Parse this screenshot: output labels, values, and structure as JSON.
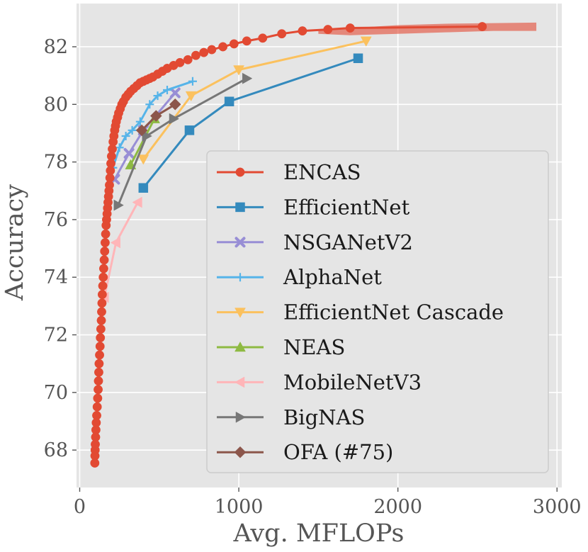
{
  "chart_data": {
    "type": "line",
    "title": "",
    "xlabel": "Avg. MFLOPs",
    "ylabel": "Accuracy",
    "xlim": [
      -20,
      3030
    ],
    "ylim": [
      66.7,
      83.5
    ],
    "xticks": [
      0,
      1000,
      2000,
      3000
    ],
    "yticks": [
      68,
      70,
      72,
      74,
      76,
      78,
      80,
      82
    ],
    "grid": true,
    "legend_position": "lower-right",
    "background_color": "#e5e5e5",
    "band": {
      "series": "ENCAS",
      "upper_x": [
        1500,
        1700,
        2000,
        2300,
        2600,
        2870
      ],
      "upper_y": [
        82.55,
        82.65,
        82.75,
        82.8,
        82.82,
        82.84
      ],
      "lower_x": [
        1500,
        1700,
        2000,
        2300,
        2600,
        2870
      ],
      "lower_y": [
        82.45,
        82.4,
        82.45,
        82.5,
        82.55,
        82.55
      ]
    },
    "series": [
      {
        "name": "ENCAS",
        "color": "#e24a33",
        "marker": "circle",
        "marker_step": 1,
        "x": [
          95,
          96,
          97,
          98,
          100,
          102,
          104,
          107,
          110,
          113,
          116,
          118,
          120,
          122,
          125,
          128,
          130,
          133,
          136,
          138,
          140,
          142,
          145,
          148,
          151,
          154,
          157,
          160,
          163,
          166,
          169,
          172,
          175,
          178,
          181,
          184,
          187,
          190,
          193,
          196,
          200,
          205,
          210,
          215,
          220,
          225,
          230,
          238,
          245,
          255,
          265,
          275,
          290,
          305,
          320,
          340,
          360,
          380,
          400,
          420,
          440,
          460,
          490,
          520,
          550,
          590,
          630,
          680,
          730,
          780,
          830,
          900,
          970,
          1050,
          1150,
          1270,
          1400,
          1560,
          1700,
          2530
        ],
        "y": [
          67.55,
          67.8,
          68.0,
          68.2,
          68.45,
          68.7,
          68.95,
          69.2,
          69.5,
          69.8,
          70.1,
          70.4,
          70.7,
          71.0,
          71.3,
          71.6,
          71.9,
          72.2,
          72.5,
          72.8,
          73.1,
          73.4,
          73.7,
          74.0,
          74.3,
          74.6,
          74.9,
          75.2,
          75.5,
          75.8,
          76.0,
          76.2,
          76.4,
          76.6,
          76.8,
          77.0,
          77.2,
          77.45,
          77.7,
          77.95,
          78.2,
          78.45,
          78.7,
          78.9,
          79.1,
          79.25,
          79.4,
          79.55,
          79.7,
          79.85,
          80.0,
          80.1,
          80.25,
          80.35,
          80.45,
          80.55,
          80.65,
          80.75,
          80.8,
          80.85,
          80.9,
          80.95,
          81.05,
          81.15,
          81.25,
          81.35,
          81.45,
          81.55,
          81.7,
          81.8,
          81.9,
          82.0,
          82.1,
          82.2,
          82.3,
          82.45,
          82.55,
          82.6,
          82.65,
          82.7
        ]
      },
      {
        "name": "EfficientNet",
        "color": "#348abd",
        "marker": "square",
        "marker_step": 1,
        "x": [
          400,
          690,
          940,
          1750
        ],
        "y": [
          77.1,
          79.1,
          80.1,
          81.6
        ]
      },
      {
        "name": "NSGANetV2",
        "color": "#988ed5",
        "marker": "x",
        "marker_step": 1,
        "x": [
          220,
          310,
          400,
          600
        ],
        "y": [
          77.4,
          78.3,
          79.1,
          80.4
        ]
      },
      {
        "name": "AlphaNet",
        "color": "#56b4e9",
        "marker": "plus",
        "marker_step": 1,
        "x": [
          209,
          250,
          290,
          330,
          380,
          440,
          490,
          550,
          710
        ],
        "y": [
          77.8,
          78.5,
          78.9,
          79.1,
          79.4,
          80.0,
          80.3,
          80.5,
          80.8
        ]
      },
      {
        "name": "EfficientNet Cascade",
        "color": "#fbc15e",
        "marker": "tri_down",
        "marker_step": 1,
        "x": [
          400,
          700,
          1000,
          1800
        ],
        "y": [
          78.1,
          80.3,
          81.2,
          82.2
        ]
      },
      {
        "name": "NEAS",
        "color": "#8eba42",
        "marker": "tri_up",
        "marker_step": 1,
        "x": [
          320,
          470
        ],
        "y": [
          77.9,
          79.5
        ]
      },
      {
        "name": "MobileNetV3",
        "color": "#ffb5b8",
        "marker": "tri_left",
        "marker_step": 1,
        "x": [
          155,
          228,
          365
        ],
        "y": [
          73.3,
          75.2,
          76.6
        ]
      },
      {
        "name": "BigNAS",
        "color": "#777777",
        "marker": "tri_right",
        "marker_step": 1,
        "x": [
          242,
          420,
          590,
          1050
        ],
        "y": [
          76.5,
          78.9,
          79.5,
          80.9
        ]
      },
      {
        "name": "OFA (#75)",
        "color": "#8c564b",
        "marker": "diamond",
        "marker_step": 1,
        "x": [
          390,
          480,
          600
        ],
        "y": [
          79.1,
          79.6,
          80.0
        ]
      }
    ]
  }
}
